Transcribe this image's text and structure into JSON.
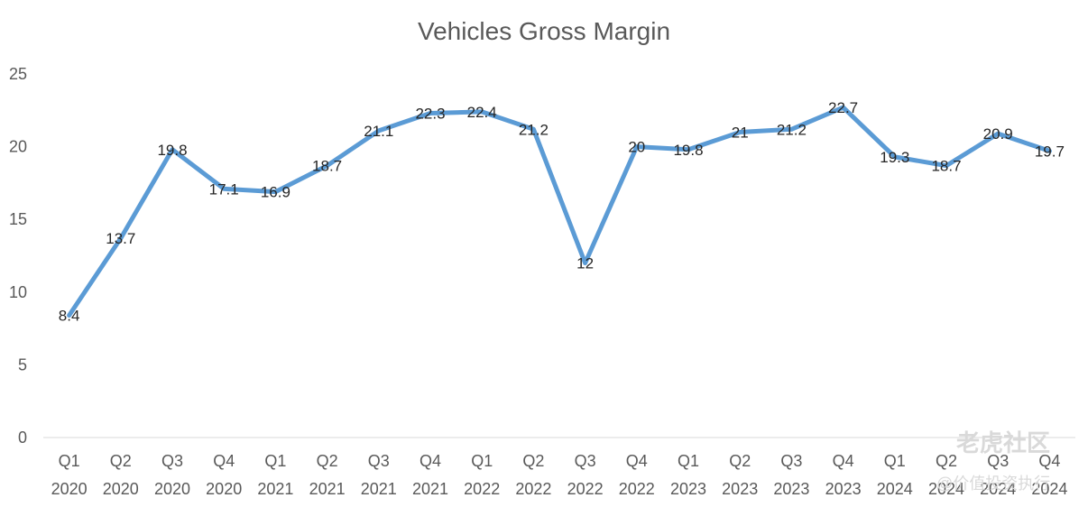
{
  "chart_data": {
    "type": "line",
    "title": "Vehicles Gross Margin",
    "categories": [
      [
        "Q1",
        "2020"
      ],
      [
        "Q2",
        "2020"
      ],
      [
        "Q3",
        "2020"
      ],
      [
        "Q4",
        "2020"
      ],
      [
        "Q1",
        "2021"
      ],
      [
        "Q2",
        "2021"
      ],
      [
        "Q3",
        "2021"
      ],
      [
        "Q4",
        "2021"
      ],
      [
        "Q1",
        "2022"
      ],
      [
        "Q2",
        "2022"
      ],
      [
        "Q3",
        "2022"
      ],
      [
        "Q4",
        "2022"
      ],
      [
        "Q1",
        "2023"
      ],
      [
        "Q2",
        "2023"
      ],
      [
        "Q3",
        "2023"
      ],
      [
        "Q4",
        "2023"
      ],
      [
        "Q1",
        "2024"
      ],
      [
        "Q2",
        "2024"
      ],
      [
        "Q3",
        "2024"
      ],
      [
        "Q4",
        "2024"
      ]
    ],
    "values": [
      8.4,
      13.7,
      19.8,
      17.1,
      16.9,
      18.7,
      21.1,
      22.3,
      22.4,
      21.2,
      12,
      20,
      19.8,
      21,
      21.2,
      22.7,
      19.3,
      18.7,
      20.9,
      19.7
    ],
    "value_labels": [
      "8.4",
      "13.7",
      "19.8",
      "17.1",
      "16.9",
      "18.7",
      "21.1",
      "22.3",
      "22.4",
      "21.2",
      "12",
      "20",
      "19.8",
      "21",
      "21.2",
      "22.7",
      "19.3",
      "18.7",
      "20.9",
      "19.7"
    ],
    "ylim": [
      0,
      25
    ],
    "yticks": [
      "0",
      "5",
      "10",
      "15",
      "20",
      "25"
    ],
    "grid": false,
    "legend": false,
    "line_color": "#5B9BD5"
  },
  "watermark": {
    "line1": "老虎社区",
    "line2": "@价值投资执行"
  }
}
